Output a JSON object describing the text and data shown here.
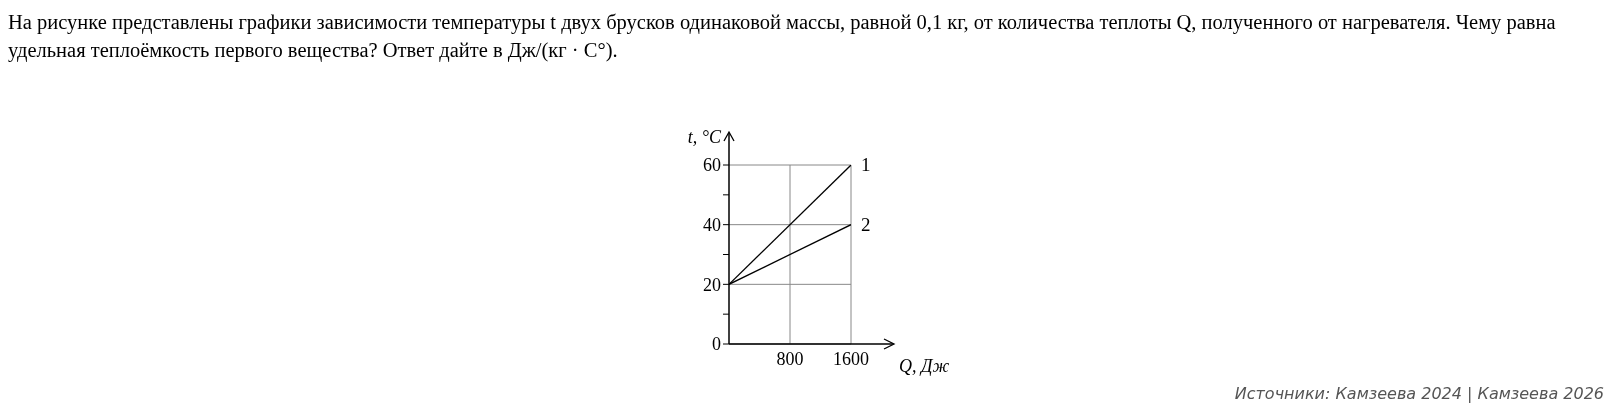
{
  "chart_data": {
    "type": "line",
    "title": "На рисунке представлены графики зависимости температуры t двух брусков одинаковой массы, равной 0,1 кг, от количества теплоты Q, полученного от нагревателя. Чему равна удельная теплоёмкость первого вещества? Ответ дайте в Дж/(кг · C°).",
    "xlabel": "Q, Дж",
    "ylabel": "t, °C",
    "x": [
      0,
      1600
    ],
    "series": [
      {
        "name": "1",
        "color": "#000000",
        "values": [
          20,
          60
        ]
      },
      {
        "name": "2",
        "color": "#000000",
        "values": [
          20,
          40
        ]
      }
    ],
    "xlim": [
      0,
      1600
    ],
    "ylim": [
      0,
      60
    ],
    "xticks": [
      800,
      1600
    ],
    "yticks": [
      0,
      {
        "value": 10,
        "label": null
      },
      20,
      {
        "value": 30,
        "label": null
      },
      40,
      {
        "value": 50,
        "label": null
      },
      60
    ],
    "grid": true,
    "marker": "none",
    "line_style": "solid",
    "annotations": [
      "Источники: Камзеева 2024 | Камзеева 2026"
    ]
  }
}
